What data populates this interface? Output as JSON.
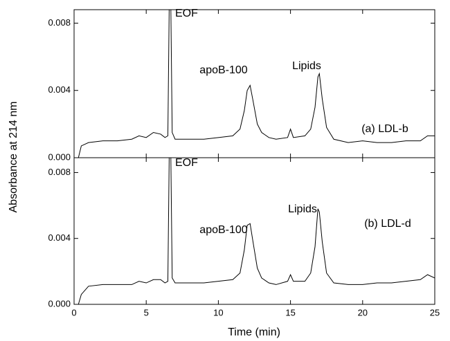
{
  "chart_data": [
    {
      "type": "line",
      "ylabel": "Absorbance at 214 nm",
      "xlim": [
        0,
        25
      ],
      "ylim": [
        0,
        0.0088
      ],
      "yticks": [
        {
          "value": 0,
          "label": "0.000"
        },
        {
          "value": 0.004,
          "label": "0.004"
        },
        {
          "value": 0.008,
          "label": "0.008"
        }
      ],
      "annotations": [
        "EOF",
        "apoB-100",
        "Lipids",
        "(a) LDL-b"
      ],
      "color": "#000000",
      "x": [
        0.3,
        0.5,
        1,
        2,
        3,
        4,
        4.5,
        5,
        5.5,
        6,
        6.3,
        6.5,
        6.6,
        6.7,
        6.8,
        7,
        8,
        9,
        10,
        11,
        11.5,
        11.8,
        12,
        12.2,
        12.4,
        12.7,
        13,
        13.5,
        14,
        14.8,
        15,
        15.2,
        16,
        16.4,
        16.7,
        16.9,
        17,
        17.2,
        17.5,
        18,
        19,
        20,
        21,
        22,
        23,
        24,
        24.5,
        25
      ],
      "values": [
        0,
        0.0007,
        0.0009,
        0.001,
        0.001,
        0.0011,
        0.0013,
        0.0012,
        0.0015,
        0.0014,
        0.0012,
        0.0013,
        0.0095,
        0.0095,
        0.0015,
        0.0011,
        0.0011,
        0.0011,
        0.0012,
        0.0013,
        0.0017,
        0.0028,
        0.004,
        0.0043,
        0.0034,
        0.002,
        0.0015,
        0.0012,
        0.0011,
        0.0012,
        0.0017,
        0.0012,
        0.0013,
        0.0017,
        0.003,
        0.0048,
        0.005,
        0.0035,
        0.0018,
        0.0011,
        0.0009,
        0.001,
        0.0009,
        0.0009,
        0.001,
        0.001,
        0.0013,
        0.0013
      ]
    },
    {
      "type": "line",
      "xlabel": "Time (min)",
      "xlim": [
        0,
        25
      ],
      "ylim": [
        0,
        0.0089
      ],
      "xticks": [
        0,
        5,
        10,
        15,
        20,
        25
      ],
      "yticks": [
        {
          "value": 0,
          "label": "0.000"
        },
        {
          "value": 0.004,
          "label": "0.004"
        },
        {
          "value": 0.008,
          "label": "0.008"
        }
      ],
      "annotations": [
        "EOF",
        "apoB-100",
        "Lipids",
        "(b) LDL-d"
      ],
      "color": "#000000",
      "x": [
        0.3,
        0.5,
        1,
        2,
        3,
        4,
        4.5,
        5,
        5.5,
        6,
        6.3,
        6.5,
        6.6,
        6.7,
        6.8,
        7,
        8,
        9,
        10,
        11,
        11.5,
        11.8,
        12,
        12.2,
        12.4,
        12.7,
        13,
        13.5,
        14,
        14.8,
        15,
        15.2,
        16,
        16.4,
        16.7,
        16.9,
        17,
        17.2,
        17.5,
        18,
        19,
        20,
        21,
        22,
        23,
        24,
        24.5,
        25
      ],
      "values": [
        0,
        0.0006,
        0.0011,
        0.0012,
        0.0012,
        0.0012,
        0.0014,
        0.0013,
        0.0015,
        0.0015,
        0.0013,
        0.0014,
        0.0095,
        0.0095,
        0.0016,
        0.0013,
        0.0013,
        0.0013,
        0.0014,
        0.0015,
        0.0019,
        0.0033,
        0.0048,
        0.0049,
        0.0038,
        0.0022,
        0.0016,
        0.0013,
        0.0012,
        0.0014,
        0.0018,
        0.0014,
        0.0014,
        0.0019,
        0.0035,
        0.0058,
        0.0056,
        0.0038,
        0.0019,
        0.0013,
        0.0012,
        0.0012,
        0.0013,
        0.0013,
        0.0014,
        0.0015,
        0.0018,
        0.0016
      ]
    }
  ]
}
